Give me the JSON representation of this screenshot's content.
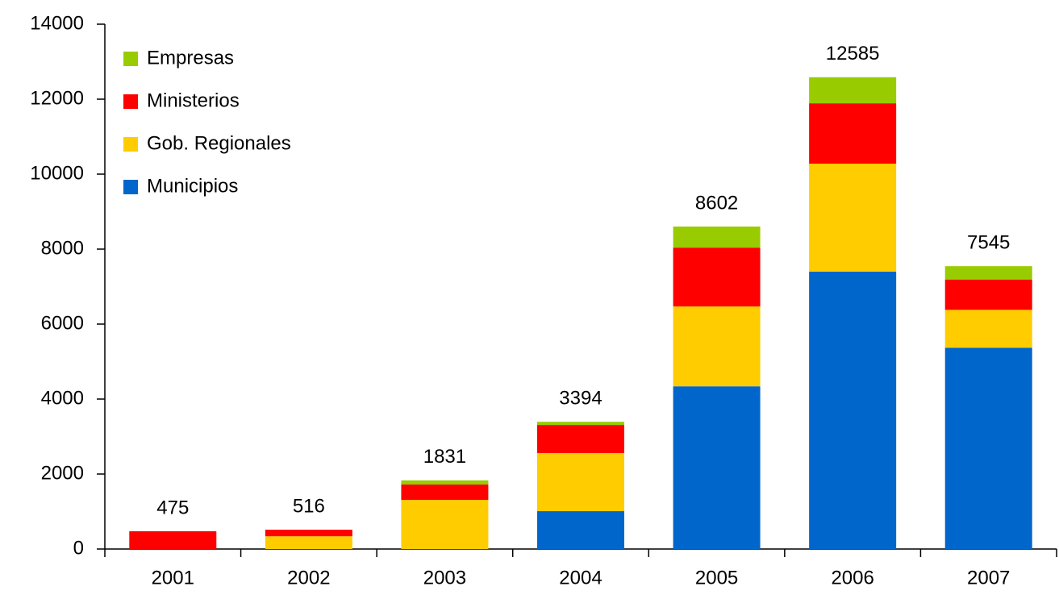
{
  "chart_data": {
    "type": "stacked_bar",
    "categories": [
      "2001",
      "2002",
      "2003",
      "2004",
      "2005",
      "2006",
      "2007"
    ],
    "series": [
      {
        "name": "Municipios",
        "color": "#0066cc",
        "values": [
          0,
          0,
          0,
          1010,
          4340,
          7400,
          5370
        ]
      },
      {
        "name": "Gob. Regionales",
        "color": "#ffcc00",
        "values": [
          0,
          340,
          1310,
          1550,
          2130,
          2880,
          1010
        ]
      },
      {
        "name": "Ministerios",
        "color": "#ff0000",
        "values": [
          475,
          176,
          410,
          750,
          1570,
          1610,
          810
        ]
      },
      {
        "name": "Empresas",
        "color": "#99cc00",
        "values": [
          0,
          0,
          111,
          84,
          562,
          695,
          355
        ]
      }
    ],
    "totals": [
      475,
      516,
      1831,
      3394,
      8602,
      12585,
      7545
    ],
    "ylim": [
      0,
      14000
    ],
    "yticks": [
      0,
      2000,
      4000,
      6000,
      8000,
      10000,
      12000,
      14000
    ],
    "legend": "top-left"
  }
}
